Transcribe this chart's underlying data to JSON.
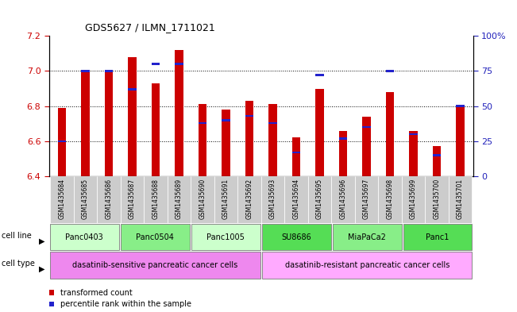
{
  "title": "GDS5627 / ILMN_1711021",
  "samples": [
    "GSM1435684",
    "GSM1435685",
    "GSM1435686",
    "GSM1435687",
    "GSM1435688",
    "GSM1435689",
    "GSM1435690",
    "GSM1435691",
    "GSM1435692",
    "GSM1435693",
    "GSM1435694",
    "GSM1435695",
    "GSM1435696",
    "GSM1435697",
    "GSM1435698",
    "GSM1435699",
    "GSM1435700",
    "GSM1435701"
  ],
  "transformed_count": [
    6.79,
    7.0,
    7.0,
    7.08,
    6.93,
    7.12,
    6.81,
    6.78,
    6.83,
    6.81,
    6.62,
    6.9,
    6.66,
    6.74,
    6.88,
    6.66,
    6.57,
    6.8
  ],
  "percentile_rank": [
    25,
    75,
    75,
    62,
    80,
    80,
    38,
    40,
    43,
    38,
    17,
    72,
    27,
    35,
    75,
    30,
    15,
    50
  ],
  "bar_bottom": 6.4,
  "ylim": [
    6.4,
    7.2
  ],
  "y_ticks_left": [
    6.4,
    6.6,
    6.8,
    7.0,
    7.2
  ],
  "y_ticks_right": [
    0,
    25,
    50,
    75,
    100
  ],
  "bar_color": "#cc0000",
  "percentile_color": "#2222cc",
  "cell_lines": [
    {
      "label": "Panc0403",
      "start": 0,
      "end": 3,
      "color": "#ccffcc"
    },
    {
      "label": "Panc0504",
      "start": 3,
      "end": 6,
      "color": "#88ee88"
    },
    {
      "label": "Panc1005",
      "start": 6,
      "end": 9,
      "color": "#ccffcc"
    },
    {
      "label": "SU8686",
      "start": 9,
      "end": 12,
      "color": "#55dd55"
    },
    {
      "label": "MiaPaCa2",
      "start": 12,
      "end": 15,
      "color": "#88ee88"
    },
    {
      "label": "Panc1",
      "start": 15,
      "end": 18,
      "color": "#55dd55"
    }
  ],
  "cell_type_color_sensitive": "#ee88ee",
  "cell_type_color_resistant": "#ffaaff",
  "cell_types": [
    {
      "label": "dasatinib-sensitive pancreatic cancer cells",
      "start": 0,
      "end": 9,
      "color": "#ee88ee"
    },
    {
      "label": "dasatinib-resistant pancreatic cancer cells",
      "start": 9,
      "end": 18,
      "color": "#ffaaff"
    }
  ],
  "legend_items": [
    {
      "label": "transformed count",
      "color": "#cc0000"
    },
    {
      "label": "percentile rank within the sample",
      "color": "#2222cc"
    }
  ],
  "bar_width": 0.35,
  "xtick_bg": "#cccccc",
  "sample_fontsize": 5.5,
  "title_fontsize": 9
}
